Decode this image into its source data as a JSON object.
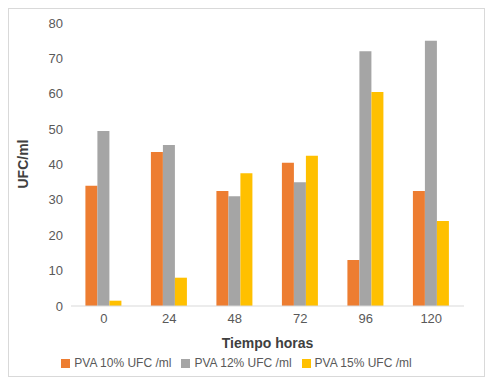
{
  "chart_data": {
    "type": "bar",
    "x_label": "Tiempo horas",
    "y_label": "UFC/ml",
    "categories": [
      "0",
      "24",
      "48",
      "72",
      "96",
      "120"
    ],
    "series": [
      {
        "name": "PVA 10% UFC /ml",
        "color": "#ed7d31",
        "values": [
          34,
          43.5,
          32.5,
          40.5,
          13,
          32.5
        ]
      },
      {
        "name": "PVA 12% UFC /ml",
        "color": "#a5a5a5",
        "values": [
          49.5,
          45.5,
          31,
          35,
          72,
          75
        ]
      },
      {
        "name": "PVA 15% UFC /ml",
        "color": "#ffc000",
        "values": [
          1.5,
          8,
          37.5,
          42.5,
          60.5,
          24
        ]
      }
    ],
    "ylim": [
      0,
      80
    ],
    "yticks": [
      0,
      10,
      20,
      30,
      40,
      50,
      60,
      70,
      80
    ],
    "grid": false,
    "legend": "bottom"
  }
}
